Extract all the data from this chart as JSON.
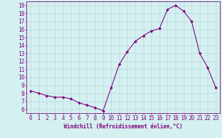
{
  "x": [
    0,
    1,
    2,
    3,
    4,
    5,
    6,
    7,
    8,
    9,
    10,
    11,
    12,
    13,
    14,
    15,
    16,
    17,
    18,
    19,
    20,
    21,
    22,
    23
  ],
  "y": [
    8.3,
    8.0,
    7.7,
    7.5,
    7.5,
    7.3,
    6.8,
    6.5,
    6.2,
    5.8,
    8.7,
    11.6,
    13.2,
    14.5,
    15.2,
    15.8,
    16.1,
    18.5,
    19.0,
    18.3,
    17.0,
    13.0,
    11.2,
    8.7
  ],
  "line_color": "#800080",
  "marker": "D",
  "marker_size": 2,
  "bg_color": "#d4f0f0",
  "grid_color": "#b8d8dc",
  "xlabel": "Windchill (Refroidissement éolien,°C)",
  "xlabel_fontsize": 5.5,
  "ylim": [
    5.5,
    19.5
  ],
  "xlim": [
    -0.5,
    23.5
  ],
  "yticks": [
    6,
    7,
    8,
    9,
    10,
    11,
    12,
    13,
    14,
    15,
    16,
    17,
    18,
    19
  ],
  "xticks": [
    0,
    1,
    2,
    3,
    4,
    5,
    6,
    7,
    8,
    9,
    10,
    11,
    12,
    13,
    14,
    15,
    16,
    17,
    18,
    19,
    20,
    21,
    22,
    23
  ],
  "tick_fontsize": 5.5,
  "axis_color": "#800080",
  "linewidth": 0.8
}
